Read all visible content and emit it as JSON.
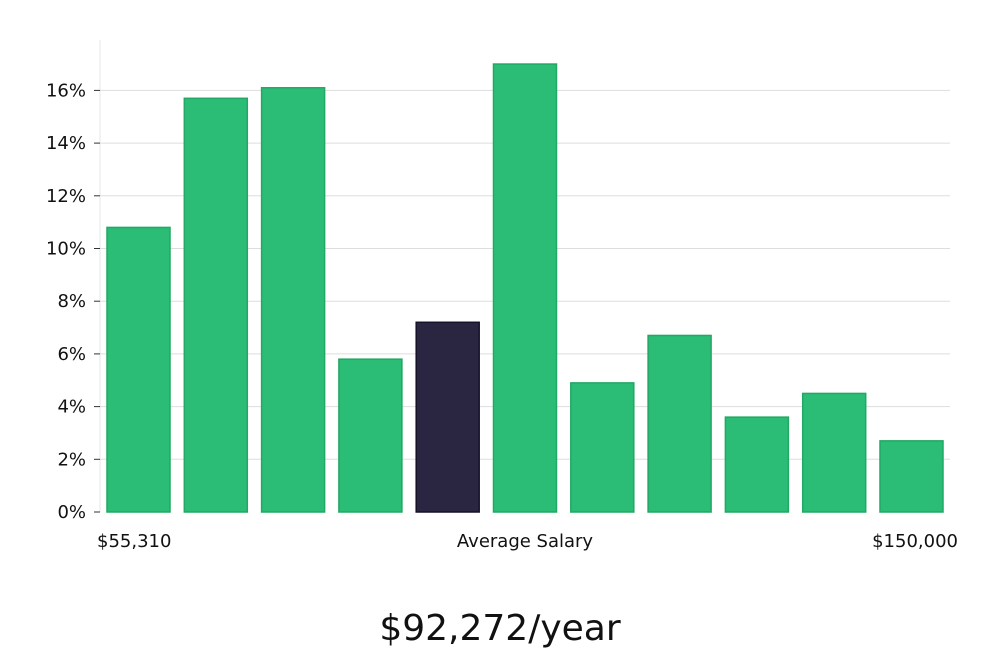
{
  "chart_data": {
    "type": "bar",
    "values": [
      10.8,
      15.7,
      16.1,
      5.8,
      7.2,
      17.0,
      4.9,
      6.7,
      3.6,
      4.5,
      2.7
    ],
    "highlight_index": 4,
    "yticks": [
      "0%",
      "2%",
      "4%",
      "6%",
      "8%",
      "10%",
      "12%",
      "14%",
      "16%"
    ],
    "ylim": [
      0,
      18
    ],
    "grid": true,
    "x_labels": {
      "left": "$55,310",
      "center": "Average Salary",
      "right": "$150,000"
    },
    "colors": {
      "bar": "#2bbd76",
      "bar_edge": "#21a864",
      "highlight": "#2a2541",
      "highlight_edge": "#15122a",
      "grid": "#dddddd"
    }
  },
  "salary_text": "$92,272/year"
}
